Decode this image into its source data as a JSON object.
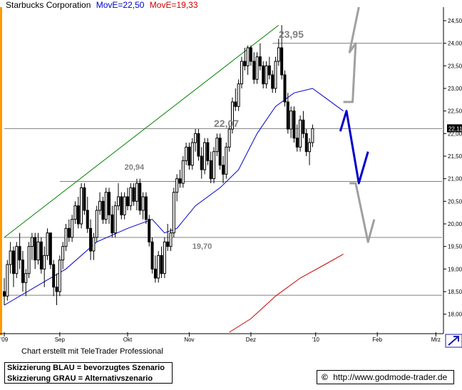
{
  "header": {
    "title": "Starbucks Corporation",
    "ma_blue_label": "MovE=22,50",
    "ma_red_label": "MovE=19,33"
  },
  "footer": {
    "credit": "Chart erstellt mit TeleTrader Professional",
    "legend_blue": "Skizzierung BLAU = bevorzugtes Szenario",
    "legend_gray": "Skizzierung GRAU = Alternativszenario",
    "copyright_symbol": "©",
    "url": "http://www.godmode-trader.de"
  },
  "colors": {
    "candle": "#000000",
    "ma_blue": "#0000cc",
    "ma_red": "#cc0000",
    "trendline": "#008000",
    "horizontal_lines": "#808080",
    "scenario_blue": "#0000cc",
    "scenario_gray": "#a0a0a0",
    "annotation_text": "#808080",
    "header_orange": "#ff9900"
  },
  "chart_data": {
    "type": "candlestick",
    "ylim": [
      17.6,
      24.8
    ],
    "yticks": [
      18.0,
      18.5,
      19.0,
      19.5,
      20.0,
      20.5,
      21.0,
      21.5,
      22.0,
      22.5,
      23.0,
      23.5,
      24.0,
      24.5
    ],
    "ytick_labels": [
      "18,00",
      "18,50",
      "19,00",
      "19,50",
      "20,00",
      "20,50",
      "21,00",
      "21,50",
      "22,00",
      "22,50",
      "23,00",
      "23,50",
      "24,00",
      "24,50"
    ],
    "x_range": [
      0,
      142
    ],
    "x_ticks": [
      {
        "label": "'09",
        "x": 0
      },
      {
        "label": "Sep",
        "x": 18
      },
      {
        "label": "Okt",
        "x": 40
      },
      {
        "label": "Nov",
        "x": 60
      },
      {
        "label": "Dez",
        "x": 80
      },
      {
        "label": "'10",
        "x": 101
      },
      {
        "label": "Feb",
        "x": 121
      },
      {
        "label": "Mrz",
        "x": 140
      }
    ],
    "last_price_label": "22,11",
    "last_price": 22.11,
    "candles": [
      {
        "o": 18.5,
        "h": 18.8,
        "l": 18.2,
        "c": 18.4
      },
      {
        "o": 18.4,
        "h": 19.2,
        "l": 18.3,
        "c": 19.1
      },
      {
        "o": 19.1,
        "h": 19.6,
        "l": 18.9,
        "c": 19.4
      },
      {
        "o": 19.4,
        "h": 19.5,
        "l": 18.6,
        "c": 18.9
      },
      {
        "o": 18.9,
        "h": 19.6,
        "l": 18.8,
        "c": 19.5
      },
      {
        "o": 19.5,
        "h": 19.8,
        "l": 19.0,
        "c": 19.2
      },
      {
        "o": 19.2,
        "h": 19.4,
        "l": 18.5,
        "c": 18.7
      },
      {
        "o": 18.7,
        "h": 19.0,
        "l": 18.4,
        "c": 18.9
      },
      {
        "o": 18.9,
        "h": 19.6,
        "l": 18.8,
        "c": 19.5
      },
      {
        "o": 19.5,
        "h": 19.8,
        "l": 19.2,
        "c": 19.7
      },
      {
        "o": 19.7,
        "h": 19.8,
        "l": 19.0,
        "c": 19.2
      },
      {
        "o": 19.2,
        "h": 19.8,
        "l": 19.1,
        "c": 19.6
      },
      {
        "o": 19.6,
        "h": 19.7,
        "l": 18.9,
        "c": 19.0
      },
      {
        "o": 19.0,
        "h": 19.5,
        "l": 18.6,
        "c": 19.3
      },
      {
        "o": 19.3,
        "h": 19.9,
        "l": 19.2,
        "c": 19.8
      },
      {
        "o": 19.8,
        "h": 19.8,
        "l": 19.0,
        "c": 19.1
      },
      {
        "o": 19.1,
        "h": 19.2,
        "l": 18.4,
        "c": 18.6
      },
      {
        "o": 18.6,
        "h": 18.9,
        "l": 18.2,
        "c": 18.5
      },
      {
        "o": 18.5,
        "h": 19.3,
        "l": 18.4,
        "c": 19.2
      },
      {
        "o": 19.2,
        "h": 19.6,
        "l": 19.0,
        "c": 19.5
      },
      {
        "o": 19.5,
        "h": 20.0,
        "l": 19.4,
        "c": 19.9
      },
      {
        "o": 19.9,
        "h": 20.1,
        "l": 19.6,
        "c": 19.7
      },
      {
        "o": 19.7,
        "h": 20.2,
        "l": 19.6,
        "c": 20.1
      },
      {
        "o": 20.1,
        "h": 20.5,
        "l": 20.0,
        "c": 20.4
      },
      {
        "o": 20.4,
        "h": 20.6,
        "l": 19.9,
        "c": 20.0
      },
      {
        "o": 20.0,
        "h": 20.9,
        "l": 19.9,
        "c": 20.8
      },
      {
        "o": 20.8,
        "h": 20.9,
        "l": 20.2,
        "c": 20.3
      },
      {
        "o": 20.3,
        "h": 20.6,
        "l": 19.8,
        "c": 19.9
      },
      {
        "o": 19.9,
        "h": 20.1,
        "l": 19.2,
        "c": 19.4
      },
      {
        "o": 19.4,
        "h": 19.8,
        "l": 19.2,
        "c": 19.7
      },
      {
        "o": 19.7,
        "h": 20.4,
        "l": 19.6,
        "c": 20.3
      },
      {
        "o": 20.3,
        "h": 20.7,
        "l": 20.2,
        "c": 20.5
      },
      {
        "o": 20.5,
        "h": 20.6,
        "l": 20.0,
        "c": 20.1
      },
      {
        "o": 20.1,
        "h": 20.8,
        "l": 20.0,
        "c": 20.7
      },
      {
        "o": 20.7,
        "h": 20.8,
        "l": 20.0,
        "c": 20.2
      },
      {
        "o": 20.2,
        "h": 20.4,
        "l": 19.7,
        "c": 19.8
      },
      {
        "o": 19.8,
        "h": 20.5,
        "l": 19.7,
        "c": 20.4
      },
      {
        "o": 20.4,
        "h": 20.9,
        "l": 20.3,
        "c": 20.6
      },
      {
        "o": 20.6,
        "h": 20.7,
        "l": 20.1,
        "c": 20.2
      },
      {
        "o": 20.2,
        "h": 20.7,
        "l": 20.1,
        "c": 20.6
      },
      {
        "o": 20.6,
        "h": 20.8,
        "l": 20.3,
        "c": 20.4
      },
      {
        "o": 20.4,
        "h": 20.9,
        "l": 20.3,
        "c": 20.8
      },
      {
        "o": 20.8,
        "h": 20.9,
        "l": 20.4,
        "c": 20.5
      },
      {
        "o": 20.5,
        "h": 21.0,
        "l": 20.3,
        "c": 20.9
      },
      {
        "o": 20.9,
        "h": 21.0,
        "l": 20.2,
        "c": 20.3
      },
      {
        "o": 20.3,
        "h": 20.7,
        "l": 20.1,
        "c": 20.6
      },
      {
        "o": 20.6,
        "h": 20.7,
        "l": 20.0,
        "c": 20.1
      },
      {
        "o": 20.1,
        "h": 20.2,
        "l": 19.5,
        "c": 19.6
      },
      {
        "o": 19.6,
        "h": 19.7,
        "l": 18.9,
        "c": 19.0
      },
      {
        "o": 19.0,
        "h": 19.3,
        "l": 18.7,
        "c": 18.8
      },
      {
        "o": 18.8,
        "h": 19.4,
        "l": 18.7,
        "c": 19.3
      },
      {
        "o": 19.3,
        "h": 19.5,
        "l": 18.8,
        "c": 18.9
      },
      {
        "o": 18.9,
        "h": 19.7,
        "l": 18.8,
        "c": 19.6
      },
      {
        "o": 19.6,
        "h": 20.0,
        "l": 19.4,
        "c": 19.5
      },
      {
        "o": 19.5,
        "h": 19.9,
        "l": 19.4,
        "c": 19.8
      },
      {
        "o": 19.8,
        "h": 20.8,
        "l": 19.7,
        "c": 20.7
      },
      {
        "o": 20.7,
        "h": 21.1,
        "l": 20.5,
        "c": 21.0
      },
      {
        "o": 21.0,
        "h": 21.2,
        "l": 20.8,
        "c": 20.9
      },
      {
        "o": 20.9,
        "h": 21.5,
        "l": 20.8,
        "c": 21.4
      },
      {
        "o": 21.4,
        "h": 21.8,
        "l": 21.3,
        "c": 21.7
      },
      {
        "o": 21.7,
        "h": 21.8,
        "l": 21.2,
        "c": 21.3
      },
      {
        "o": 21.3,
        "h": 21.9,
        "l": 21.2,
        "c": 21.8
      },
      {
        "o": 21.8,
        "h": 22.1,
        "l": 21.6,
        "c": 22.0
      },
      {
        "o": 22.0,
        "h": 22.1,
        "l": 21.4,
        "c": 21.5
      },
      {
        "o": 21.5,
        "h": 21.7,
        "l": 21.0,
        "c": 21.2
      },
      {
        "o": 21.2,
        "h": 21.9,
        "l": 21.1,
        "c": 21.8
      },
      {
        "o": 21.8,
        "h": 21.9,
        "l": 21.3,
        "c": 21.4
      },
      {
        "o": 21.4,
        "h": 21.6,
        "l": 20.9,
        "c": 21.0
      },
      {
        "o": 21.0,
        "h": 21.7,
        "l": 20.9,
        "c": 21.6
      },
      {
        "o": 21.6,
        "h": 22.0,
        "l": 21.5,
        "c": 21.9
      },
      {
        "o": 21.9,
        "h": 22.0,
        "l": 21.2,
        "c": 21.3
      },
      {
        "o": 21.3,
        "h": 21.5,
        "l": 20.9,
        "c": 21.1
      },
      {
        "o": 21.1,
        "h": 21.8,
        "l": 21.0,
        "c": 21.7
      },
      {
        "o": 21.7,
        "h": 22.2,
        "l": 21.6,
        "c": 22.1
      },
      {
        "o": 22.1,
        "h": 22.8,
        "l": 22.0,
        "c": 22.7
      },
      {
        "o": 22.7,
        "h": 23.0,
        "l": 22.5,
        "c": 22.6
      },
      {
        "o": 22.6,
        "h": 23.2,
        "l": 22.5,
        "c": 23.1
      },
      {
        "o": 23.1,
        "h": 23.7,
        "l": 23.0,
        "c": 23.6
      },
      {
        "o": 23.6,
        "h": 23.9,
        "l": 23.4,
        "c": 23.5
      },
      {
        "o": 23.5,
        "h": 23.95,
        "l": 23.3,
        "c": 23.9
      },
      {
        "o": 23.9,
        "h": 23.95,
        "l": 23.5,
        "c": 23.6
      },
      {
        "o": 23.6,
        "h": 23.8,
        "l": 23.1,
        "c": 23.2
      },
      {
        "o": 23.2,
        "h": 23.8,
        "l": 23.1,
        "c": 23.7
      },
      {
        "o": 23.7,
        "h": 24.0,
        "l": 23.4,
        "c": 23.5
      },
      {
        "o": 23.5,
        "h": 23.6,
        "l": 23.0,
        "c": 23.1
      },
      {
        "o": 23.1,
        "h": 23.6,
        "l": 23.0,
        "c": 23.5
      },
      {
        "o": 23.5,
        "h": 23.7,
        "l": 23.2,
        "c": 23.3
      },
      {
        "o": 23.3,
        "h": 23.4,
        "l": 22.9,
        "c": 23.0
      },
      {
        "o": 23.0,
        "h": 23.7,
        "l": 22.9,
        "c": 23.6
      },
      {
        "o": 23.6,
        "h": 24.1,
        "l": 23.5,
        "c": 23.9
      },
      {
        "o": 23.9,
        "h": 24.4,
        "l": 23.2,
        "c": 23.3
      },
      {
        "o": 23.3,
        "h": 23.4,
        "l": 22.6,
        "c": 22.7
      },
      {
        "o": 22.7,
        "h": 22.9,
        "l": 22.0,
        "c": 22.1
      },
      {
        "o": 22.1,
        "h": 22.6,
        "l": 21.9,
        "c": 22.5
      },
      {
        "o": 22.5,
        "h": 22.6,
        "l": 21.8,
        "c": 21.9
      },
      {
        "o": 21.9,
        "h": 22.2,
        "l": 21.6,
        "c": 21.7
      },
      {
        "o": 21.7,
        "h": 22.4,
        "l": 21.6,
        "c": 22.3
      },
      {
        "o": 22.3,
        "h": 22.5,
        "l": 21.9,
        "c": 22.0
      },
      {
        "o": 22.0,
        "h": 22.1,
        "l": 21.5,
        "c": 21.6
      },
      {
        "o": 21.6,
        "h": 21.9,
        "l": 21.3,
        "c": 21.8
      },
      {
        "o": 21.8,
        "h": 22.2,
        "l": 21.7,
        "c": 22.11
      }
    ],
    "ma_blue": {
      "name": "MovE=22,50",
      "points": [
        [
          0,
          18.2
        ],
        [
          10,
          18.6
        ],
        [
          20,
          19.0
        ],
        [
          30,
          19.6
        ],
        [
          40,
          19.9
        ],
        [
          48,
          20.1
        ],
        [
          52,
          19.8
        ],
        [
          56,
          19.9
        ],
        [
          62,
          20.4
        ],
        [
          70,
          20.8
        ],
        [
          76,
          21.2
        ],
        [
          82,
          22.0
        ],
        [
          88,
          22.6
        ],
        [
          94,
          22.9
        ],
        [
          100,
          23.0
        ],
        [
          104,
          22.8
        ],
        [
          110,
          22.5
        ]
      ]
    },
    "ma_red": {
      "name": "MovE=19,33",
      "points": [
        [
          73,
          17.6
        ],
        [
          80,
          17.9
        ],
        [
          88,
          18.4
        ],
        [
          96,
          18.8
        ],
        [
          104,
          19.1
        ],
        [
          110,
          19.33
        ]
      ]
    },
    "trendline": {
      "from": [
        0,
        19.7
      ],
      "to": [
        89,
        24.4
      ]
    },
    "horizontal_lines": [
      {
        "y": 24.0,
        "from_x": 87
      },
      {
        "y": 22.11,
        "from_x": 0
      },
      {
        "y": 20.94,
        "from_x": 18
      },
      {
        "y": 19.7,
        "from_x": 0
      },
      {
        "y": 18.42,
        "from_x": 0
      }
    ],
    "annotations": [
      {
        "text": "23,95",
        "x": 89,
        "y": 24.12
      },
      {
        "text": "22,07",
        "x": 68,
        "y": 22.15
      },
      {
        "text": "20,94",
        "x": 39,
        "y": 21.2
      },
      {
        "text": "19,70",
        "x": 61,
        "y": 19.45
      }
    ],
    "scenario_blue": [
      [
        109,
        22.05
      ],
      [
        111,
        22.5
      ],
      [
        115,
        20.9
      ],
      [
        118,
        21.6
      ]
    ],
    "scenario_gray_upper": [
      [
        110,
        22.7
      ],
      [
        113,
        22.7
      ],
      [
        114,
        24.0
      ],
      [
        112,
        23.8
      ],
      [
        115,
        24.8
      ]
    ],
    "scenario_gray_lower": [
      [
        112,
        20.9
      ],
      [
        114,
        20.9
      ],
      [
        118,
        19.6
      ],
      [
        120,
        20.1
      ]
    ]
  }
}
